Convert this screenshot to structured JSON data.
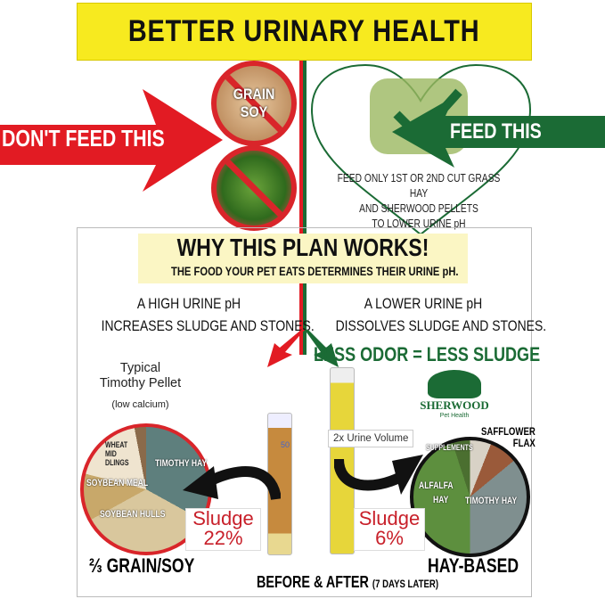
{
  "banner": {
    "title": "BETTER URINARY HEALTH",
    "color": "#f7ea1f"
  },
  "dont_feed": {
    "label": "DON'T FEED THIS",
    "color": "#e21b23",
    "circles": [
      {
        "text": "GRAIN SOY"
      },
      {
        "text": ""
      }
    ]
  },
  "feed": {
    "label": "FEED THIS",
    "color": "#1b6b35",
    "lines": [
      "FEED ONLY 1ST OR 2ND CUT GRASS HAY",
      "AND SHERWOOD PELLETS",
      "TO LOWER URINE pH"
    ]
  },
  "why": {
    "title": "WHY THIS PLAN WORKS!",
    "subtitle": "THE FOOD YOUR PET EATS DETERMINES THEIR URINE pH."
  },
  "left_col": [
    "A HIGH URINE pH",
    "INCREASES SLUDGE AND STONES."
  ],
  "right_col": [
    "A LOWER URINE pH",
    "DISSOLVES SLUDGE AND STONES."
  ],
  "less_odor": "LESS ODOR = LESS SLUDGE",
  "typical": {
    "line1": "Typical",
    "line2": "Timothy Pellet",
    "note": "(low calcium)"
  },
  "left_pie": {
    "labels": [
      "WHEAT MID DLINGS",
      "TIMOTHY HAY",
      "SOYBEAN MEAL",
      "SOYBEAN HULLS"
    ],
    "caption": "⅔ GRAIN/SOY"
  },
  "right_pie": {
    "labels": [
      "SUPPLEMENTS",
      "SAFFLOWER",
      "FLAX",
      "ALFALFA",
      "HAY",
      "TIMOTHY HAY"
    ],
    "caption": "HAY-BASED"
  },
  "sludge_left": {
    "label": "Sludge",
    "value": "22%"
  },
  "sludge_right": {
    "label": "Sludge",
    "value": "6%"
  },
  "urine_volume": "2x Urine Volume",
  "cylinder_mark": "50",
  "before_after": {
    "main": "BEFORE & AFTER",
    "note": "(7 DAYS LATER)"
  },
  "logo": {
    "name": "SHERWOOD",
    "sub": "Pet Health"
  }
}
